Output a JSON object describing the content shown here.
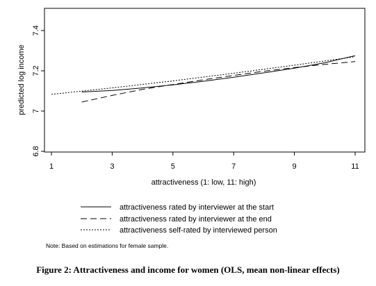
{
  "chart_data": {
    "type": "line",
    "xlabel": "attractiveness (1: low, 11: high)",
    "ylabel": "predicted log income",
    "xlim": [
      1,
      11
    ],
    "ylim": [
      6.8,
      7.4
    ],
    "xticks": [
      1,
      3,
      5,
      7,
      9,
      11
    ],
    "yticks": [
      6.8,
      7,
      7.2,
      7.4
    ],
    "grid": false,
    "legend_position": "bottom",
    "series": [
      {
        "name": "attractiveness rated by interviewer at the start",
        "style": "solid",
        "x": [
          2,
          3,
          4,
          5,
          6,
          7,
          8,
          9,
          10,
          11
        ],
        "y": [
          7.095,
          7.102,
          7.115,
          7.13,
          7.148,
          7.168,
          7.19,
          7.213,
          7.24,
          7.275
        ]
      },
      {
        "name": "attractiveness rated by interviewer at the end",
        "style": "dashed",
        "x": [
          2,
          3,
          4,
          5,
          6,
          7,
          8,
          9,
          10,
          11
        ],
        "y": [
          7.045,
          7.078,
          7.108,
          7.132,
          7.155,
          7.177,
          7.198,
          7.216,
          7.232,
          7.246
        ]
      },
      {
        "name": "attractiveness self-rated by interviewed person",
        "style": "dotted",
        "x": [
          1,
          3,
          5,
          7,
          9,
          11
        ],
        "y": [
          7.083,
          7.115,
          7.15,
          7.188,
          7.228,
          7.27
        ]
      }
    ]
  },
  "note": "Note: Based on estimations for female sample.",
  "caption": "Figure 2: Attractiveness and income for women (OLS, mean non-linear effects)"
}
